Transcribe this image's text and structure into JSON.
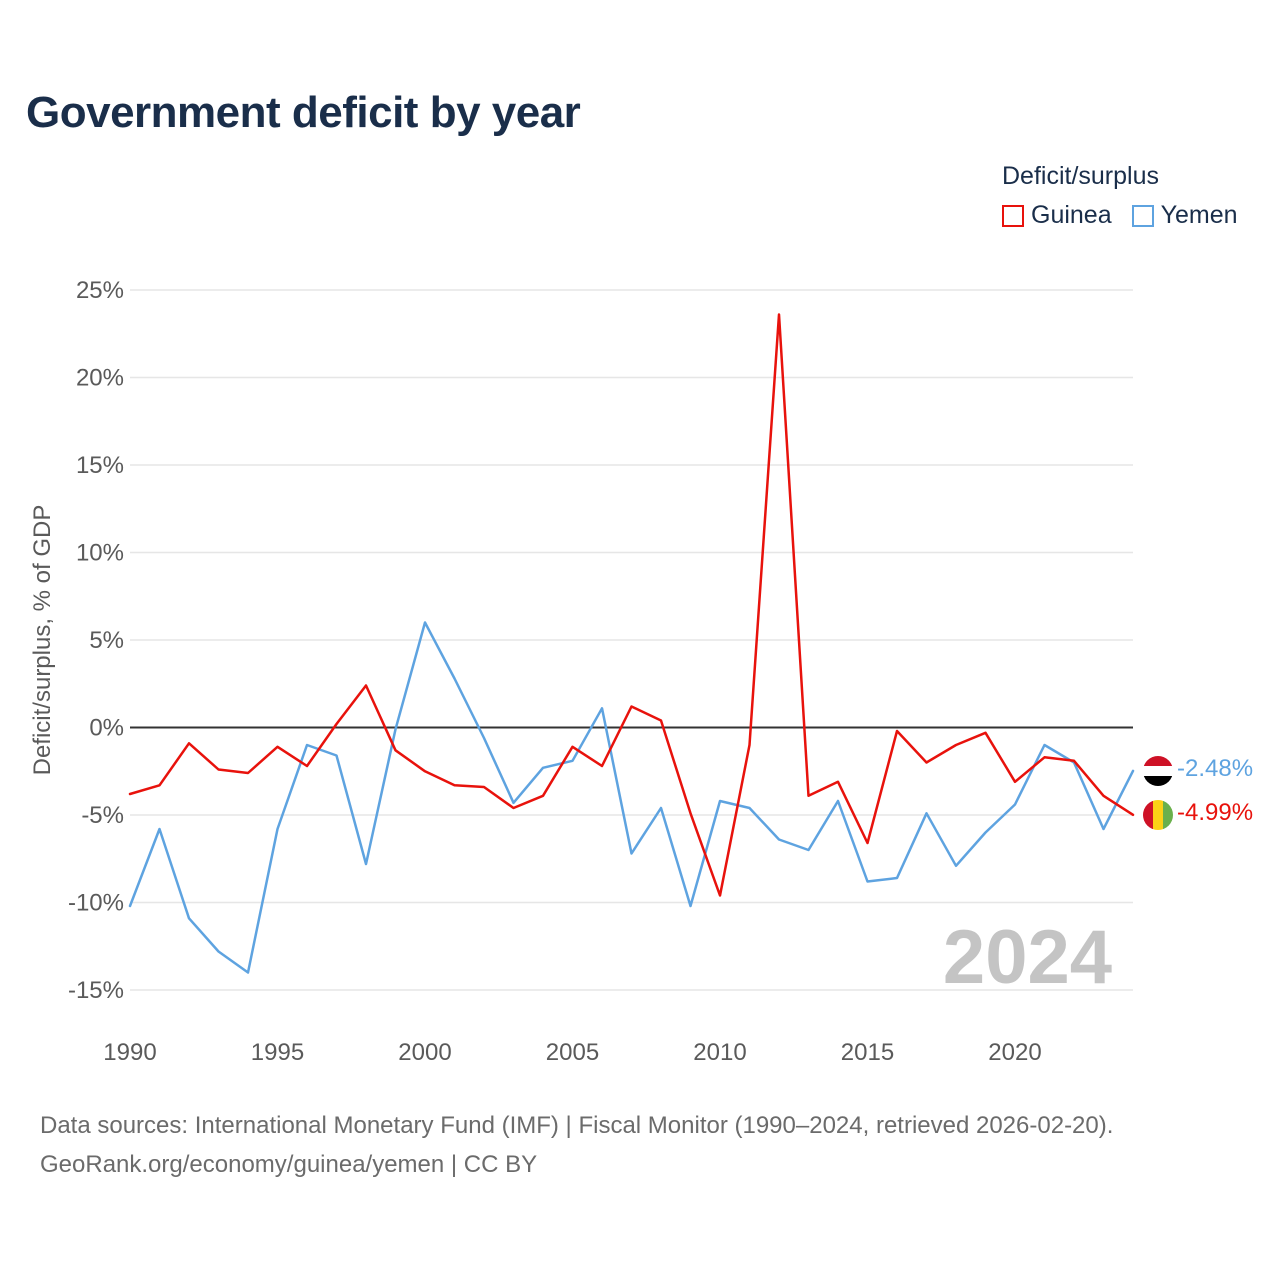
{
  "chart_data": {
    "type": "line",
    "title": "Government deficit by year",
    "ylabel": "Deficit/surplus, % of GDP",
    "xlabel": "",
    "xlim": [
      1990,
      2024
    ],
    "ylim": [
      -15,
      25
    ],
    "y_ticks": [
      25,
      20,
      15,
      10,
      5,
      0,
      -5,
      -10,
      -15
    ],
    "y_tick_labels": [
      "25%",
      "20%",
      "15%",
      "10%",
      "5%",
      "0%",
      "-5%",
      "-10%",
      "-15%"
    ],
    "x_ticks": [
      1990,
      1995,
      2000,
      2005,
      2010,
      2015,
      2020
    ],
    "x_tick_labels": [
      "1990",
      "1995",
      "2000",
      "2005",
      "2010",
      "2015",
      "2020"
    ],
    "grid": true,
    "zero_line": true,
    "watermark_year": "2024",
    "legend": {
      "title": "Deficit/surplus",
      "position": "top-right"
    },
    "x": [
      1990,
      1991,
      1992,
      1993,
      1994,
      1995,
      1996,
      1997,
      1998,
      1999,
      2000,
      2001,
      2002,
      2003,
      2004,
      2005,
      2006,
      2007,
      2008,
      2009,
      2010,
      2011,
      2012,
      2013,
      2014,
      2015,
      2016,
      2017,
      2018,
      2019,
      2020,
      2021,
      2022,
      2023,
      2024
    ],
    "series": [
      {
        "name": "Guinea",
        "color": "#e8120c",
        "end_label": "-4.99%",
        "flag": "guinea-flag",
        "values": [
          -3.8,
          -3.3,
          -0.9,
          -2.4,
          -2.6,
          -1.1,
          -2.2,
          0.2,
          2.4,
          -1.3,
          -2.5,
          -3.3,
          -3.4,
          -4.6,
          -3.9,
          -1.1,
          -2.2,
          1.2,
          0.4,
          -4.9,
          -9.6,
          -1.0,
          23.6,
          -3.9,
          -3.1,
          -6.6,
          -0.2,
          -2.0,
          -1.0,
          -0.3,
          -3.1,
          -1.7,
          -1.9,
          -3.9,
          -4.99
        ]
      },
      {
        "name": "Yemen",
        "color": "#5ea3e0",
        "end_label": "-2.48%",
        "flag": "yemen-flag",
        "values": [
          -10.2,
          -5.8,
          -10.9,
          -12.8,
          -14.0,
          -5.8,
          -1.0,
          -1.6,
          -7.8,
          -0.1,
          6.0,
          2.8,
          -0.6,
          -4.3,
          -2.3,
          -1.9,
          1.1,
          -7.2,
          -4.6,
          -10.2,
          -4.2,
          -4.6,
          -6.4,
          -7.0,
          -4.2,
          -8.8,
          -8.6,
          -4.9,
          -7.9,
          -6.0,
          -4.4,
          -1.0,
          -2.0,
          -5.8,
          -2.48
        ]
      }
    ]
  },
  "footer": {
    "line1": "Data sources: International Monetary Fund (IMF) | Fiscal Monitor (1990–2024, retrieved 2026-02-20).",
    "line2": "GeoRank.org/economy/guinea/yemen | CC BY"
  }
}
